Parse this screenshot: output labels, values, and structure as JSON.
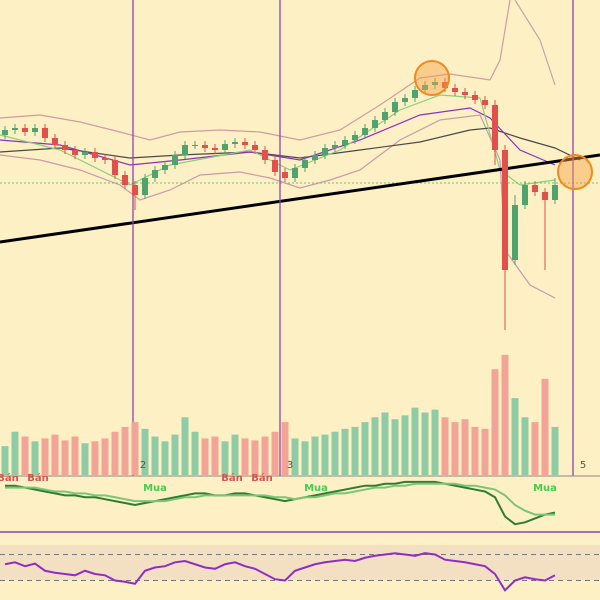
{
  "chart_data": [
    {
      "type": "candlestick",
      "open": [
        265,
        270,
        272,
        268,
        272,
        262,
        255,
        250,
        245,
        248,
        242,
        240,
        225,
        215,
        205,
        222,
        230,
        235,
        245,
        255,
        255,
        252,
        250,
        256,
        258,
        255,
        250,
        240,
        228,
        222,
        232,
        240,
        245,
        252,
        255,
        260,
        265,
        272,
        280,
        288,
        298,
        302,
        310,
        315,
        318,
        312,
        308,
        305,
        300,
        295,
        250,
        140,
        195,
        215,
        208,
        200
      ],
      "high": [
        274,
        276,
        276,
        276,
        276,
        266,
        259,
        254,
        252,
        252,
        246,
        244,
        229,
        219,
        226,
        234,
        239,
        249,
        259,
        259,
        259,
        256,
        260,
        262,
        262,
        259,
        254,
        244,
        232,
        236,
        244,
        249,
        256,
        259,
        264,
        269,
        276,
        284,
        292,
        302,
        306,
        314,
        319,
        322,
        322,
        316,
        312,
        309,
        304,
        300,
        255,
        205,
        219,
        219,
        212,
        222
      ],
      "low": [
        261,
        266,
        264,
        264,
        258,
        251,
        246,
        241,
        241,
        238,
        236,
        221,
        211,
        190,
        201,
        218,
        226,
        231,
        241,
        251,
        248,
        246,
        246,
        252,
        251,
        246,
        236,
        224,
        218,
        218,
        228,
        236,
        241,
        248,
        251,
        256,
        261,
        268,
        276,
        284,
        294,
        298,
        306,
        311,
        308,
        304,
        301,
        296,
        291,
        235,
        70,
        135,
        191,
        204,
        130,
        196
      ],
      "close": [
        270,
        272,
        268,
        272,
        262,
        255,
        250,
        245,
        248,
        242,
        240,
        225,
        215,
        205,
        222,
        230,
        235,
        245,
        255,
        255,
        252,
        250,
        256,
        258,
        255,
        250,
        240,
        228,
        222,
        232,
        240,
        245,
        252,
        255,
        260,
        265,
        272,
        280,
        288,
        298,
        302,
        310,
        315,
        318,
        312,
        308,
        305,
        300,
        295,
        250,
        130,
        195,
        215,
        208,
        200,
        215
      ],
      "ylim": [
        0,
        400
      ],
      "up_color": "#4fa36f",
      "down_color": "#e0504c",
      "signals": [
        "Bán",
        "Bán",
        "Bán",
        "Bán",
        "Mua",
        "Mua",
        "Mua"
      ],
      "period_labels": [
        2,
        3,
        5
      ]
    },
    {
      "type": "bar",
      "values": [
        30,
        45,
        40,
        35,
        38,
        42,
        36,
        40,
        33,
        35,
        38,
        45,
        50,
        55,
        48,
        40,
        35,
        42,
        60,
        45,
        38,
        40,
        35,
        42,
        38,
        36,
        40,
        45,
        55,
        38,
        35,
        40,
        42,
        45,
        48,
        50,
        55,
        60,
        65,
        58,
        62,
        70,
        65,
        68,
        60,
        55,
        58,
        50,
        48,
        110,
        125,
        80,
        60,
        55,
        100,
        50
      ],
      "ylim": [
        0,
        130
      ],
      "up_color": "#8fcba4",
      "down_color": "#f2a596"
    },
    {
      "type": "line",
      "series": [
        {
          "name": "MACD",
          "color": "#2e7d32",
          "values": [
            8,
            8,
            7,
            6,
            5,
            4,
            3,
            3,
            2,
            2,
            1,
            0,
            -1,
            -2,
            -1,
            0,
            1,
            2,
            3,
            4,
            4,
            3,
            3,
            4,
            4,
            3,
            2,
            1,
            0,
            1,
            2,
            3,
            4,
            5,
            6,
            7,
            8,
            8,
            9,
            9,
            10,
            10,
            10,
            10,
            9,
            8,
            7,
            6,
            5,
            2,
            -8,
            -12,
            -11,
            -9,
            -7,
            -6
          ]
        },
        {
          "name": "Signal",
          "color": "#7cc576",
          "values": [
            7,
            7,
            7,
            7,
            6,
            5,
            5,
            4,
            4,
            3,
            3,
            2,
            1,
            0,
            0,
            0,
            0,
            1,
            2,
            2,
            3,
            3,
            3,
            3,
            3,
            3,
            3,
            2,
            2,
            1,
            2,
            2,
            3,
            4,
            4,
            5,
            6,
            7,
            7,
            8,
            8,
            9,
            9,
            9,
            9,
            9,
            8,
            8,
            7,
            6,
            3,
            -2,
            -5,
            -7,
            -7,
            -7
          ]
        }
      ],
      "ylim": [
        -15,
        12
      ]
    },
    {
      "type": "line",
      "series": [
        {
          "name": "RSI",
          "color": "#8e2fc4",
          "values": [
            55,
            58,
            52,
            56,
            45,
            42,
            40,
            38,
            45,
            40,
            38,
            30,
            28,
            25,
            45,
            50,
            52,
            58,
            60,
            55,
            50,
            48,
            55,
            58,
            52,
            48,
            40,
            32,
            30,
            45,
            50,
            55,
            58,
            60,
            62,
            60,
            65,
            68,
            70,
            72,
            70,
            68,
            72,
            70,
            62,
            60,
            58,
            55,
            52,
            40,
            15,
            30,
            35,
            32,
            30,
            38
          ]
        }
      ],
      "ylim": [
        0,
        100
      ],
      "yticks": [
        30,
        70
      ]
    }
  ]
}
